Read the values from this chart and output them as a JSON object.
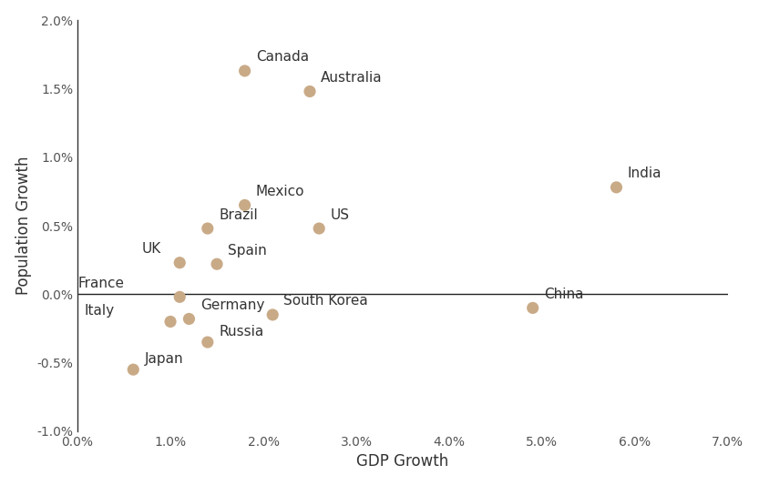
{
  "xlabel": "GDP Growth",
  "ylabel": "Population Growth",
  "dot_color": "#C9AA87",
  "countries": [
    {
      "name": "Canada",
      "gdp": 0.018,
      "pop": 0.0163
    },
    {
      "name": "Australia",
      "gdp": 0.025,
      "pop": 0.0148
    },
    {
      "name": "India",
      "gdp": 0.058,
      "pop": 0.0078
    },
    {
      "name": "Mexico",
      "gdp": 0.018,
      "pop": 0.0065
    },
    {
      "name": "Brazil",
      "gdp": 0.014,
      "pop": 0.0048
    },
    {
      "name": "US",
      "gdp": 0.026,
      "pop": 0.0048
    },
    {
      "name": "UK",
      "gdp": 0.011,
      "pop": 0.0023
    },
    {
      "name": "Spain",
      "gdp": 0.015,
      "pop": 0.0022
    },
    {
      "name": "France",
      "gdp": 0.011,
      "pop": -0.0002
    },
    {
      "name": "Germany",
      "gdp": 0.012,
      "pop": -0.0018
    },
    {
      "name": "Italy",
      "gdp": 0.01,
      "pop": -0.002
    },
    {
      "name": "South Korea",
      "gdp": 0.021,
      "pop": -0.0015
    },
    {
      "name": "China",
      "gdp": 0.049,
      "pop": -0.001
    },
    {
      "name": "Russia",
      "gdp": 0.014,
      "pop": -0.0035
    },
    {
      "name": "Japan",
      "gdp": 0.006,
      "pop": -0.0055
    }
  ],
  "xlim": [
    0.0,
    0.07
  ],
  "ylim": [
    -0.01,
    0.02
  ],
  "xticks": [
    0.0,
    0.01,
    0.02,
    0.03,
    0.04,
    0.05,
    0.06,
    0.07
  ],
  "yticks": [
    -0.01,
    -0.005,
    0.0,
    0.005,
    0.01,
    0.015,
    0.02
  ],
  "marker_size": 90,
  "fontsize_labels": 11,
  "fontsize_axis_label": 12,
  "tick_fontsize": 10,
  "background_color": "#ffffff",
  "spine_color": "#888888",
  "zeroline_color": "#222222",
  "label_color": "#333333"
}
